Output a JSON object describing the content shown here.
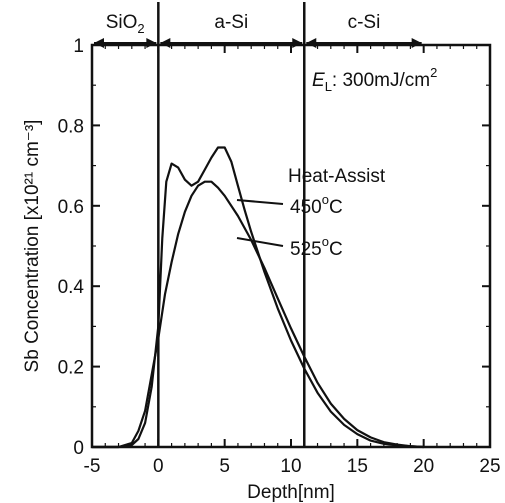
{
  "chart_data": {
    "type": "line",
    "xlabel": "Depth[nm]",
    "ylabel": "Sb Concentration [x10²¹ cm⁻³]",
    "xlim": [
      -5,
      25
    ],
    "ylim": [
      0,
      1
    ],
    "x_ticks": [
      "-5",
      "0",
      "5",
      "10",
      "15",
      "20",
      "25"
    ],
    "y_ticks": [
      "0",
      "0.2",
      "0.4",
      "0.6",
      "0.8",
      "1"
    ],
    "grid": false,
    "legend": "none",
    "regions": [
      {
        "label_main": "SiO",
        "label_sub": "2",
        "from": -5,
        "to": 0
      },
      {
        "label_main": "a-Si",
        "label_sub": "",
        "from": 0,
        "to": 11
      },
      {
        "label_main": "c-Si",
        "label_sub": "",
        "from": 11,
        "to": 20
      }
    ],
    "interfaces_x": [
      0,
      11
    ],
    "energy_annotation": {
      "symbol": "E",
      "subscript": "L",
      "text": ": 300mJ/cm",
      "superscript": "2"
    },
    "series_heading": "Heat-Assist",
    "series": [
      {
        "name": "450°C",
        "label_main": "450",
        "label_sup": "o",
        "label_end": "C",
        "x": [
          -5,
          -3,
          -2,
          -1.5,
          -1,
          -0.5,
          0,
          0.3,
          0.6,
          1,
          1.5,
          2,
          2.5,
          3,
          3.5,
          4,
          4.5,
          5,
          5.5,
          6,
          6.5,
          7,
          8,
          9,
          10,
          11,
          12,
          13,
          14,
          15,
          16,
          17,
          18,
          19,
          20
        ],
        "values": [
          0,
          0,
          0.005,
          0.02,
          0.06,
          0.15,
          0.3,
          0.52,
          0.66,
          0.705,
          0.695,
          0.665,
          0.65,
          0.66,
          0.69,
          0.72,
          0.745,
          0.745,
          0.71,
          0.65,
          0.59,
          0.535,
          0.435,
          0.345,
          0.265,
          0.195,
          0.135,
          0.088,
          0.055,
          0.032,
          0.016,
          0.008,
          0.004,
          0.002,
          0
        ]
      },
      {
        "name": "525°C",
        "label_main": "525",
        "label_sup": "o",
        "label_end": "C",
        "x": [
          -5,
          -3,
          -2,
          -1.5,
          -1,
          -0.5,
          0,
          0.5,
          1,
          1.5,
          2,
          2.5,
          3,
          3.5,
          4,
          4.5,
          5,
          6,
          7,
          8,
          9,
          10,
          11,
          12,
          13,
          14,
          15,
          16,
          17,
          18,
          19,
          20
        ],
        "values": [
          0,
          0,
          0.01,
          0.04,
          0.09,
          0.18,
          0.27,
          0.38,
          0.46,
          0.53,
          0.585,
          0.625,
          0.65,
          0.66,
          0.66,
          0.645,
          0.625,
          0.575,
          0.515,
          0.445,
          0.37,
          0.295,
          0.225,
          0.16,
          0.108,
          0.07,
          0.042,
          0.024,
          0.012,
          0.006,
          0.002,
          0
        ]
      }
    ]
  }
}
